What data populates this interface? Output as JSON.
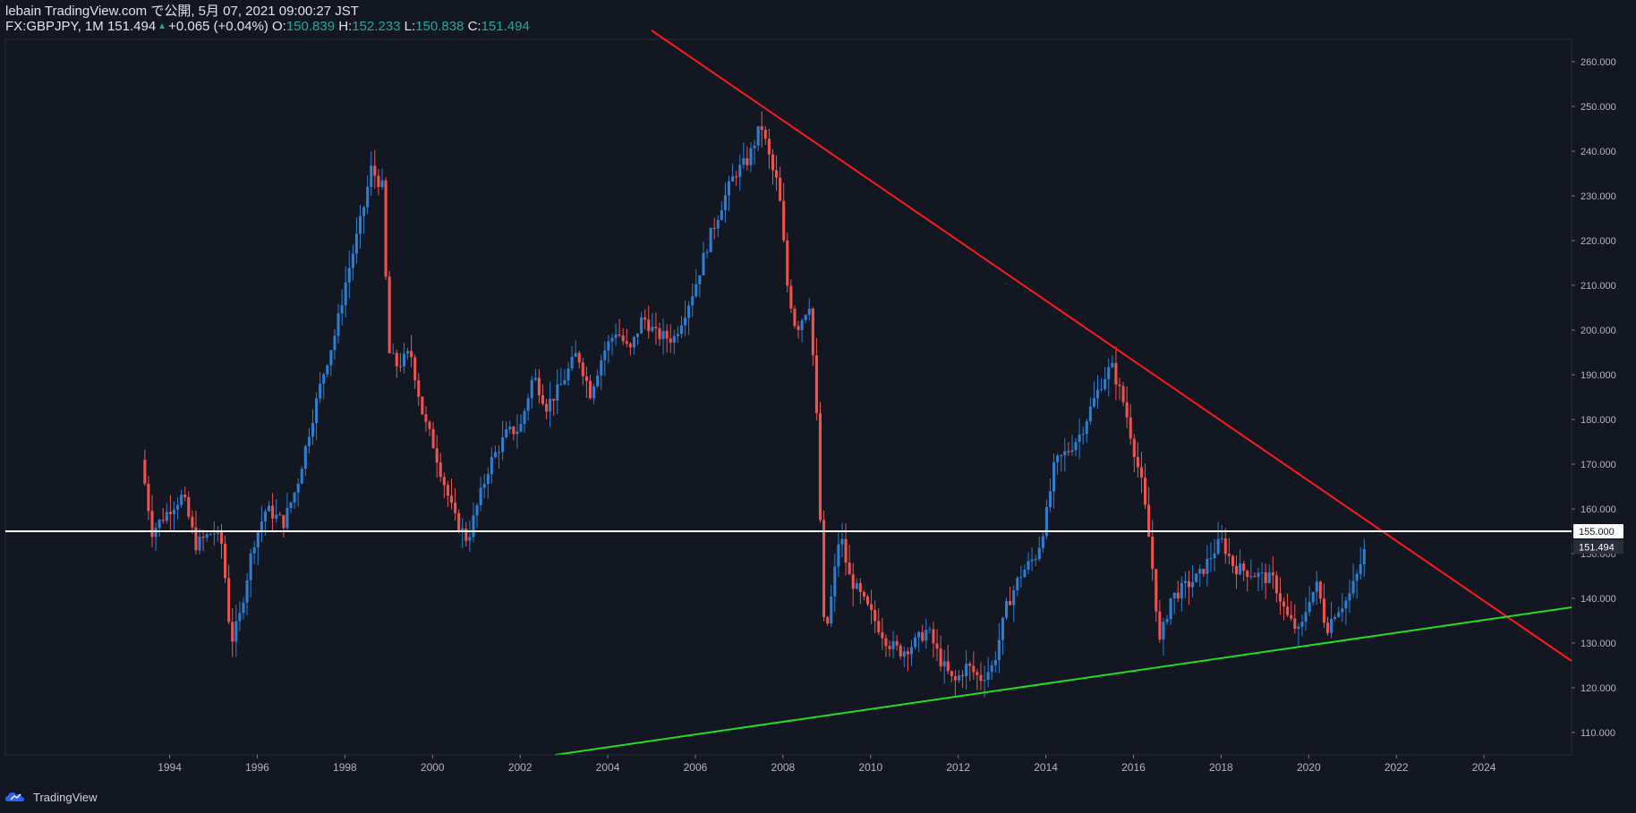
{
  "header": {
    "line1": "lebain TradingView.com で公開, 5月 07, 2021 09:00:27 JST",
    "symbol": "FX:GBPJPY, 1M",
    "last": "151.494",
    "change": "+0.065 (+0.04%)",
    "o_label": "O:",
    "o_value": "150.839",
    "h_label": "H:",
    "h_value": "152.233",
    "l_label": "L:",
    "l_value": "150.838",
    "c_label": "C:",
    "c_value": "151.494"
  },
  "footer": {
    "brand": "TradingView",
    "icon": "tradingview-cloud-icon"
  },
  "colors": {
    "background": "#131722",
    "up": "#2a7fd4",
    "down": "#ef5350",
    "resistance": "#ff1a1a",
    "support": "#22dd22",
    "level": "#ffffff",
    "axis_text": "#b2b5be"
  },
  "chart_data": {
    "type": "candlestick",
    "title": "",
    "symbol": "FX:GBPJPY",
    "timeframe": "1M",
    "x_range": [
      1990.25,
      2026.0
    ],
    "y_range": [
      105,
      265
    ],
    "xlabel": "",
    "ylabel": "",
    "grid": false,
    "y_ticks": [
      "260.000",
      "250.000",
      "240.000",
      "230.000",
      "220.000",
      "210.000",
      "200.000",
      "190.000",
      "180.000",
      "170.000",
      "160.000",
      "150.000",
      "140.000",
      "130.000",
      "120.000",
      "110.000"
    ],
    "x_ticks": [
      "1994",
      "1996",
      "1998",
      "2000",
      "2002",
      "2004",
      "2006",
      "2008",
      "2010",
      "2012",
      "2014",
      "2016",
      "2018",
      "2020",
      "2022",
      "2024"
    ],
    "price_labels": [
      {
        "name": "horizontal-level",
        "value": "155.000"
      },
      {
        "name": "last-price",
        "value": "151.494"
      }
    ],
    "close_path": [
      [
        1993.35,
        171
      ],
      [
        1993.6,
        155
      ],
      [
        1994.0,
        160
      ],
      [
        1994.3,
        163
      ],
      [
        1994.6,
        152
      ],
      [
        1995.0,
        155
      ],
      [
        1995.2,
        152
      ],
      [
        1995.4,
        130
      ],
      [
        1995.6,
        136
      ],
      [
        1995.9,
        152
      ],
      [
        1996.2,
        160
      ],
      [
        1996.6,
        157
      ],
      [
        1996.9,
        165
      ],
      [
        1997.2,
        178
      ],
      [
        1997.5,
        190
      ],
      [
        1997.8,
        200
      ],
      [
        1998.0,
        210
      ],
      [
        1998.4,
        226
      ],
      [
        1998.6,
        236
      ],
      [
        1998.85,
        232
      ],
      [
        1999.0,
        195
      ],
      [
        1999.2,
        192
      ],
      [
        1999.5,
        195
      ],
      [
        1999.8,
        180
      ],
      [
        2000.0,
        175
      ],
      [
        2000.2,
        168
      ],
      [
        2000.5,
        158
      ],
      [
        2000.8,
        153
      ],
      [
        2001.0,
        160
      ],
      [
        2001.3,
        170
      ],
      [
        2001.7,
        177
      ],
      [
        2002.0,
        178
      ],
      [
        2002.3,
        190
      ],
      [
        2002.6,
        183
      ],
      [
        2002.9,
        187
      ],
      [
        2003.3,
        195
      ],
      [
        2003.6,
        186
      ],
      [
        2003.9,
        195
      ],
      [
        2004.2,
        200
      ],
      [
        2004.5,
        195
      ],
      [
        2004.8,
        203
      ],
      [
        2005.1,
        199
      ],
      [
        2005.5,
        198
      ],
      [
        2005.8,
        205
      ],
      [
        2006.0,
        210
      ],
      [
        2006.3,
        220
      ],
      [
        2006.6,
        228
      ],
      [
        2006.9,
        235
      ],
      [
        2007.2,
        238
      ],
      [
        2007.5,
        246
      ],
      [
        2007.75,
        236
      ],
      [
        2007.9,
        232
      ],
      [
        2008.1,
        210
      ],
      [
        2008.3,
        200
      ],
      [
        2008.6,
        206
      ],
      [
        2008.75,
        185
      ],
      [
        2008.95,
        130
      ],
      [
        2009.1,
        140
      ],
      [
        2009.3,
        155
      ],
      [
        2009.5,
        145
      ],
      [
        2009.8,
        140
      ],
      [
        2010.1,
        135
      ],
      [
        2010.4,
        130
      ],
      [
        2010.7,
        128
      ],
      [
        2011.0,
        130
      ],
      [
        2011.3,
        133
      ],
      [
        2011.6,
        126
      ],
      [
        2011.9,
        121
      ],
      [
        2012.2,
        125
      ],
      [
        2012.5,
        122
      ],
      [
        2012.8,
        125
      ],
      [
        2013.1,
        138
      ],
      [
        2013.4,
        145
      ],
      [
        2013.8,
        150
      ],
      [
        2014.0,
        158
      ],
      [
        2014.2,
        170
      ],
      [
        2014.5,
        173
      ],
      [
        2014.8,
        177
      ],
      [
        2015.0,
        182
      ],
      [
        2015.3,
        189
      ],
      [
        2015.5,
        192
      ],
      [
        2015.8,
        183
      ],
      [
        2015.95,
        176
      ],
      [
        2016.2,
        165
      ],
      [
        2016.4,
        150
      ],
      [
        2016.6,
        130
      ],
      [
        2016.85,
        140
      ],
      [
        2017.1,
        142
      ],
      [
        2017.5,
        145
      ],
      [
        2017.8,
        150
      ],
      [
        2018.0,
        153
      ],
      [
        2018.3,
        147
      ],
      [
        2018.6,
        146
      ],
      [
        2018.9,
        145
      ],
      [
        2019.2,
        144
      ],
      [
        2019.5,
        136
      ],
      [
        2019.8,
        132
      ],
      [
        2020.0,
        140
      ],
      [
        2020.2,
        143
      ],
      [
        2020.4,
        133
      ],
      [
        2020.6,
        137
      ],
      [
        2020.9,
        140
      ],
      [
        2021.1,
        145
      ],
      [
        2021.3,
        151.5
      ]
    ],
    "annotations": [
      {
        "name": "resistance-trendline",
        "from": [
          2005.0,
          267
        ],
        "to": [
          2026.0,
          126
        ]
      },
      {
        "name": "support-trendline",
        "from": [
          2002.8,
          105
        ],
        "to": [
          2026.0,
          138
        ]
      },
      {
        "name": "horizontal-level",
        "at": 155
      }
    ]
  }
}
